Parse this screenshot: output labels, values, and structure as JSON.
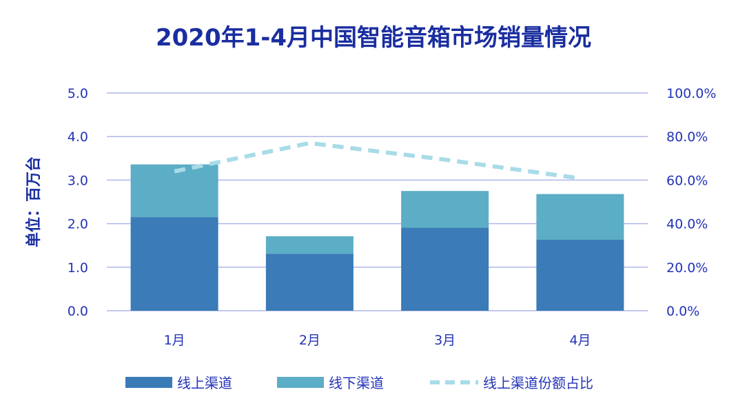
{
  "colors": {
    "title": "#1a2ea0",
    "axis_text": "#2233b8",
    "grid": "#b0b6ea",
    "online": "#3a7bb8",
    "offline": "#5cadc6",
    "share_line": "#a8dbe8",
    "legend_text": "#2233b8"
  },
  "chart_data": {
    "type": "bar",
    "stacked": true,
    "title": "2020年1-4月中国智能音箱市场销量情况",
    "ylabel": "单位：百万台",
    "xlabel": "",
    "categories": [
      "1月",
      "2月",
      "3月",
      "4月"
    ],
    "ylim": [
      0,
      5
    ],
    "yticks": [
      "0.0",
      "1.0",
      "2.0",
      "3.0",
      "4.0",
      "5.0"
    ],
    "y2lim": [
      0,
      100
    ],
    "y2ticks": [
      "0.0%",
      "20.0%",
      "40.0%",
      "60.0%",
      "80.0%",
      "100.0%"
    ],
    "grid": true,
    "legend_position": "bottom",
    "series": [
      {
        "name": "线上渠道",
        "type": "bar",
        "axis": "left",
        "values": [
          2.15,
          1.31,
          1.91,
          1.63
        ]
      },
      {
        "name": "线下渠道",
        "type": "bar",
        "axis": "left",
        "values": [
          1.21,
          0.4,
          0.84,
          1.05
        ]
      },
      {
        "name": "线上渠道份额占比",
        "type": "line",
        "style": "dashed",
        "axis": "right",
        "values": [
          64.0,
          77.0,
          69.4,
          60.8
        ]
      }
    ]
  }
}
